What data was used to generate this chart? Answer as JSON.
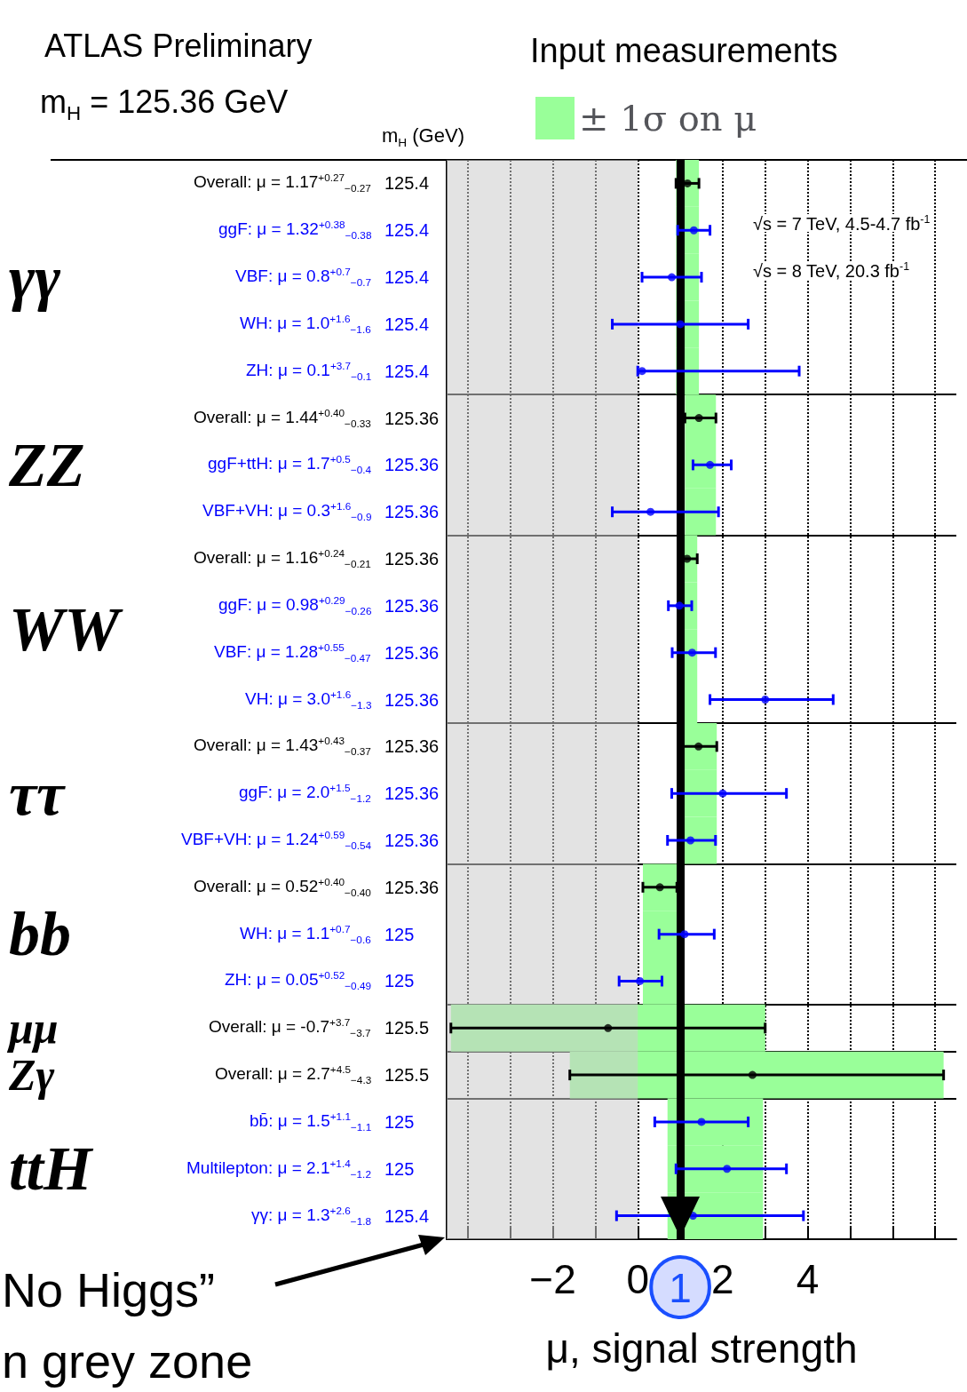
{
  "chart_data": {
    "type": "scatter",
    "orientation": "horizontal",
    "title": "ATLAS Preliminary",
    "subtitle": "m$_{H}$ = 125.36 GeV",
    "legend_title": "Input measurements",
    "xlabel": "μ, signal strength",
    "y2label": "m$_{H}$ (GeV)",
    "categories": [
      "Overall: μ = 1.17$^{+0.27}$$_{−0.27}$",
      "ggF: μ = 1.32$^{+0.38}$$_{−0.38}$",
      "VBF: μ = 0.8$^{+0.7}$$_{−0.7}$",
      "WH: μ = 1.0$^{+1.6}$$_{−1.6}$",
      "ZH: μ = 0.1$^{+3.7}$$_{−0.1}$",
      "Overall: μ = 1.44$^{+0.40}$$_{−0.33}$",
      "ggF+ttH: μ = 1.7$^{+0.5}$$_{−0.4}$",
      "VBF+VH: μ = 0.3$^{+1.6}$$_{−0.9}$",
      "Overall: μ = 1.16$^{+0.24}$$_{−0.21}$",
      "ggF: μ = 0.98$^{+0.29}$$_{−0.26}$",
      "VBF: μ = 1.28$^{+0.55}$$_{−0.47}$",
      "VH: μ = 3.0$^{+1.6}$$_{−1.3}$",
      "Overall: μ = 1.43$^{+0.43}$$_{−0.37}$",
      "ggF: μ = 2.0$^{+1.5}$$_{−1.2}$",
      "VBF+VH: μ = 1.24$^{+0.59}$$_{−0.54}$",
      "Overall: μ = 0.52$^{+0.40}$$_{−0.40}$",
      "WH: μ = 1.1$^{+0.7}$$_{−0.6}$",
      "ZH: μ = 0.05$^{+0.52}$$_{−0.49}$",
      "Overall: μ = -0.7$^{+3.7}$$_{−3.7}$",
      "Overall: μ = 2.7$^{+4.5}$$_{−4.3}$",
      "bb̄: μ = 1.5$^{+1.1}$$_{−1.1}$",
      "Multilepton: μ = 2.1$^{+1.4}$$_{−1.2}$",
      "γγ: μ = 1.3$^{+2.6}$$_{−1.8}$"
    ],
    "y2_categories": [
      "125.4",
      "125.4",
      "125.4",
      "125.4",
      "125.4",
      "125.36",
      "125.36",
      "125.36",
      "125.36",
      "125.36",
      "125.36",
      "125.36",
      "125.36",
      "125.36",
      "125.36",
      "125.36",
      "125",
      "125",
      "125.5",
      "125.5",
      "125",
      "125",
      "125.4"
    ],
    "series": [
      {
        "type": "bar",
        "name": "± 1σ on μ",
        "color": "#99ff99",
        "base": [
          0.9,
          0.9,
          0.9,
          0.9,
          0.9,
          1.11,
          1.11,
          1.11,
          0.95,
          0.95,
          0.95,
          0.95,
          1.06,
          1.06,
          1.06,
          0.12,
          0.12,
          0.12,
          -4.4,
          -1.6,
          0.7,
          0.7,
          0.7
        ],
        "values": [
          0.54,
          0.54,
          0.54,
          0.54,
          0.54,
          0.73,
          0.73,
          0.73,
          0.45,
          0.45,
          0.45,
          0.45,
          0.8,
          0.8,
          0.8,
          0.8,
          0.8,
          0.8,
          7.4,
          8.8,
          2.25,
          2.25,
          2.25
        ]
      },
      {
        "color": "#000000",
        "values": [
          1.17,
          null,
          null,
          null,
          null,
          1.44,
          null,
          null,
          1.16,
          null,
          null,
          null,
          1.43,
          null,
          null,
          0.52,
          null,
          null,
          -0.7,
          2.7,
          null,
          null,
          null
        ],
        "errors": [
          [
            0.9,
            1.44
          ],
          null,
          null,
          null,
          null,
          [
            1.11,
            1.84
          ],
          null,
          null,
          [
            0.95,
            1.4
          ],
          null,
          null,
          null,
          [
            1.06,
            1.86
          ],
          null,
          null,
          [
            0.12,
            0.92
          ],
          null,
          null,
          [
            -4.4,
            3.0
          ],
          [
            -1.6,
            7.2
          ],
          null,
          null,
          null
        ]
      },
      {
        "color": "#0000ff",
        "values": [
          null,
          1.32,
          0.8,
          1.0,
          0.1,
          null,
          1.7,
          0.3,
          null,
          0.98,
          1.28,
          3.0,
          null,
          2.0,
          1.24,
          null,
          1.1,
          0.05,
          null,
          null,
          1.5,
          2.1,
          1.3
        ],
        "errors": [
          null,
          [
            0.94,
            1.7
          ],
          [
            0.1,
            1.5
          ],
          [
            -0.6,
            2.6
          ],
          [
            0.0,
            3.8
          ],
          null,
          [
            1.3,
            2.2
          ],
          [
            -0.6,
            1.9
          ],
          null,
          [
            0.72,
            1.27
          ],
          [
            0.81,
            1.83
          ],
          [
            1.7,
            4.6
          ],
          null,
          [
            0.8,
            3.5
          ],
          [
            0.7,
            1.83
          ],
          null,
          [
            0.5,
            1.8
          ],
          [
            -0.44,
            0.57
          ],
          null,
          null,
          [
            0.4,
            2.6
          ],
          [
            0.9,
            3.5
          ],
          [
            -0.5,
            3.9
          ]
        ]
      }
    ],
    "xlim": [
      -4.5,
      7.5
    ],
    "xticks": [
      {
        "value": -4,
        "label": null
      },
      {
        "value": -3,
        "label": null
      },
      -2,
      {
        "value": -1,
        "label": null
      },
      0,
      1,
      2,
      {
        "value": 3,
        "label": null
      },
      4,
      {
        "value": 5,
        "label": null
      },
      {
        "value": 6,
        "label": null
      },
      {
        "value": 7,
        "label": null
      }
    ],
    "grid": "x",
    "legend": "top",
    "marker": "circle",
    "ref_lines": [
      {
        "axis": "x",
        "value": 1,
        "color": "#000000"
      }
    ],
    "bands": [
      {
        "axis": "x",
        "from": -4.5,
        "to": 0,
        "color": "#cccccc"
      }
    ],
    "annotations": [
      "γγ",
      "ZZ",
      "WW",
      "ττ",
      "bb",
      "μμ",
      "Zγ",
      "ttH",
      "√s = 7 TeV, 4.5-4.7 fb$^{-1}$",
      "√s = 8 TeV, 20.3 fb$^{-1}$",
      "No Higgs”\nn grey zone"
    ]
  }
}
